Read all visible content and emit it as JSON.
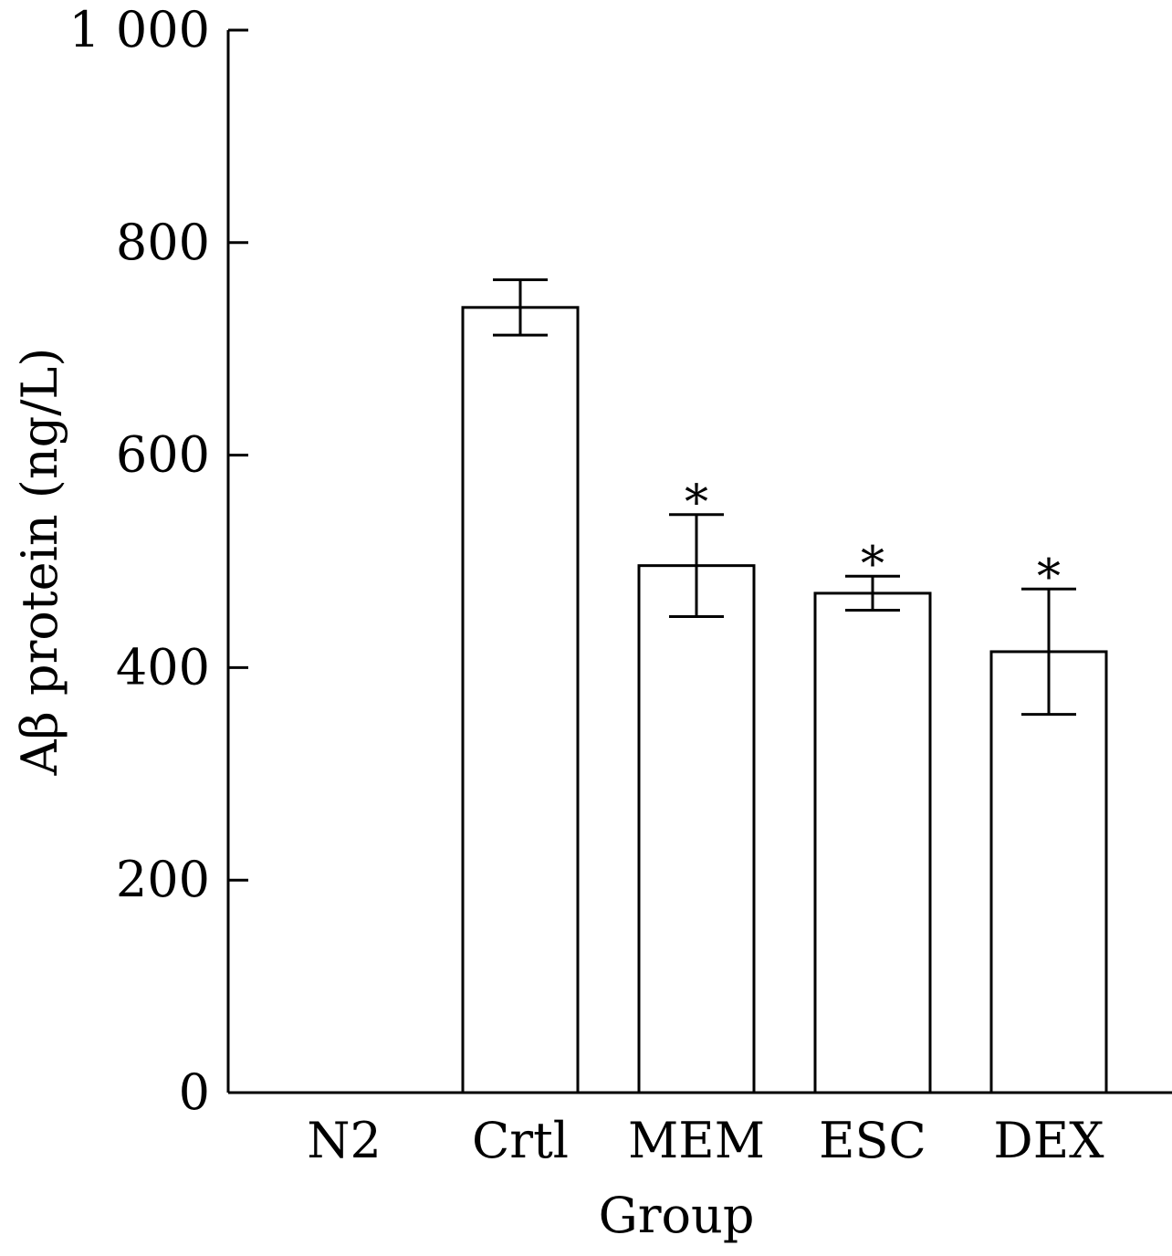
{
  "chart_data": {
    "type": "bar",
    "title": "",
    "xlabel": "Group",
    "ylabel": "Aβ protein (ng/L)",
    "categories": [
      "N2",
      "Crtl",
      "MEM",
      "ESC",
      "DEX"
    ],
    "values": [
      0,
      739,
      496,
      470,
      415
    ],
    "errors": [
      0,
      26,
      48,
      16,
      59
    ],
    "annotations": [
      "",
      "",
      "*",
      "*",
      "*"
    ],
    "ylim": [
      0,
      1000
    ],
    "yticks": [
      0,
      200,
      400,
      600,
      800,
      1000
    ],
    "ytick_labels": [
      "0",
      "200",
      "400",
      "600",
      "800",
      "1 000"
    ],
    "grid": false,
    "bar_fill": "#ffffff",
    "bar_stroke": "#000000"
  }
}
